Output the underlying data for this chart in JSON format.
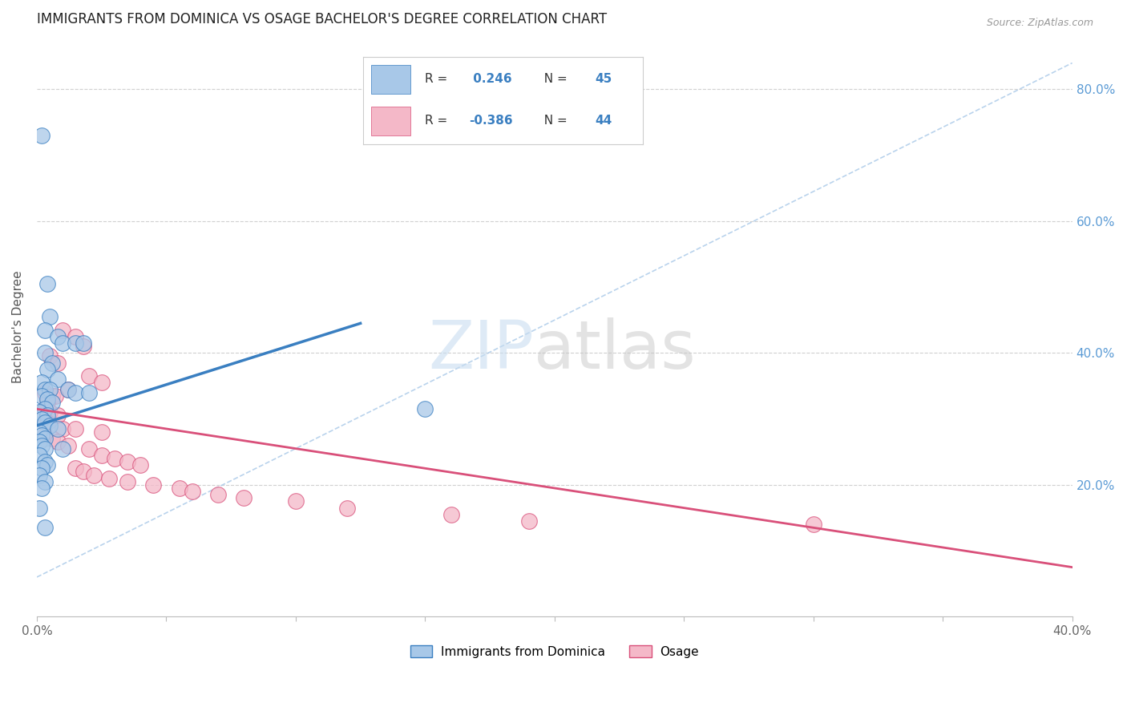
{
  "title": "IMMIGRANTS FROM DOMINICA VS OSAGE BACHELOR'S DEGREE CORRELATION CHART",
  "source": "Source: ZipAtlas.com",
  "ylabel": "Bachelor's Degree",
  "xlim": [
    0.0,
    0.4
  ],
  "ylim": [
    0.0,
    0.88
  ],
  "yticks": [
    0.2,
    0.4,
    0.6,
    0.8
  ],
  "ytick_labels": [
    "20.0%",
    "40.0%",
    "60.0%",
    "80.0%"
  ],
  "xticks": [
    0.0,
    0.05,
    0.1,
    0.15,
    0.2,
    0.25,
    0.3,
    0.35,
    0.4
  ],
  "blue_color": "#a8c8e8",
  "pink_color": "#f4b8c8",
  "trendline_blue": "#3a7fc1",
  "trendline_pink": "#d9507a",
  "dashed_color": "#a8c8e8",
  "blue_scatter": [
    [
      0.002,
      0.73
    ],
    [
      0.004,
      0.505
    ],
    [
      0.005,
      0.455
    ],
    [
      0.003,
      0.435
    ],
    [
      0.008,
      0.425
    ],
    [
      0.01,
      0.415
    ],
    [
      0.015,
      0.415
    ],
    [
      0.018,
      0.415
    ],
    [
      0.003,
      0.4
    ],
    [
      0.006,
      0.385
    ],
    [
      0.004,
      0.375
    ],
    [
      0.008,
      0.36
    ],
    [
      0.002,
      0.355
    ],
    [
      0.003,
      0.345
    ],
    [
      0.005,
      0.345
    ],
    [
      0.012,
      0.345
    ],
    [
      0.015,
      0.34
    ],
    [
      0.02,
      0.34
    ],
    [
      0.002,
      0.335
    ],
    [
      0.004,
      0.33
    ],
    [
      0.006,
      0.325
    ],
    [
      0.003,
      0.315
    ],
    [
      0.001,
      0.31
    ],
    [
      0.004,
      0.305
    ],
    [
      0.002,
      0.3
    ],
    [
      0.003,
      0.295
    ],
    [
      0.005,
      0.29
    ],
    [
      0.008,
      0.285
    ],
    [
      0.001,
      0.28
    ],
    [
      0.002,
      0.275
    ],
    [
      0.003,
      0.27
    ],
    [
      0.001,
      0.265
    ],
    [
      0.002,
      0.26
    ],
    [
      0.003,
      0.255
    ],
    [
      0.01,
      0.255
    ],
    [
      0.001,
      0.245
    ],
    [
      0.003,
      0.235
    ],
    [
      0.004,
      0.23
    ],
    [
      0.002,
      0.225
    ],
    [
      0.001,
      0.215
    ],
    [
      0.003,
      0.205
    ],
    [
      0.002,
      0.195
    ],
    [
      0.001,
      0.165
    ],
    [
      0.15,
      0.315
    ],
    [
      0.003,
      0.135
    ]
  ],
  "pink_scatter": [
    [
      0.01,
      0.435
    ],
    [
      0.015,
      0.425
    ],
    [
      0.018,
      0.41
    ],
    [
      0.005,
      0.395
    ],
    [
      0.008,
      0.385
    ],
    [
      0.02,
      0.365
    ],
    [
      0.025,
      0.355
    ],
    [
      0.012,
      0.345
    ],
    [
      0.003,
      0.34
    ],
    [
      0.006,
      0.335
    ],
    [
      0.007,
      0.335
    ],
    [
      0.004,
      0.325
    ],
    [
      0.003,
      0.315
    ],
    [
      0.005,
      0.31
    ],
    [
      0.008,
      0.305
    ],
    [
      0.002,
      0.3
    ],
    [
      0.004,
      0.295
    ],
    [
      0.01,
      0.285
    ],
    [
      0.015,
      0.285
    ],
    [
      0.025,
      0.28
    ],
    [
      0.003,
      0.275
    ],
    [
      0.006,
      0.27
    ],
    [
      0.008,
      0.265
    ],
    [
      0.012,
      0.26
    ],
    [
      0.02,
      0.255
    ],
    [
      0.025,
      0.245
    ],
    [
      0.03,
      0.24
    ],
    [
      0.035,
      0.235
    ],
    [
      0.04,
      0.23
    ],
    [
      0.015,
      0.225
    ],
    [
      0.018,
      0.22
    ],
    [
      0.022,
      0.215
    ],
    [
      0.028,
      0.21
    ],
    [
      0.035,
      0.205
    ],
    [
      0.045,
      0.2
    ],
    [
      0.055,
      0.195
    ],
    [
      0.06,
      0.19
    ],
    [
      0.07,
      0.185
    ],
    [
      0.08,
      0.18
    ],
    [
      0.1,
      0.175
    ],
    [
      0.12,
      0.165
    ],
    [
      0.16,
      0.155
    ],
    [
      0.19,
      0.145
    ],
    [
      0.3,
      0.14
    ]
  ],
  "blue_trend_x": [
    0.0,
    0.125
  ],
  "blue_trend_y": [
    0.29,
    0.445
  ],
  "pink_trend_x": [
    0.0,
    0.4
  ],
  "pink_trend_y": [
    0.315,
    0.075
  ],
  "dashed_trend_x": [
    0.0,
    0.4
  ],
  "dashed_trend_y": [
    0.06,
    0.84
  ]
}
